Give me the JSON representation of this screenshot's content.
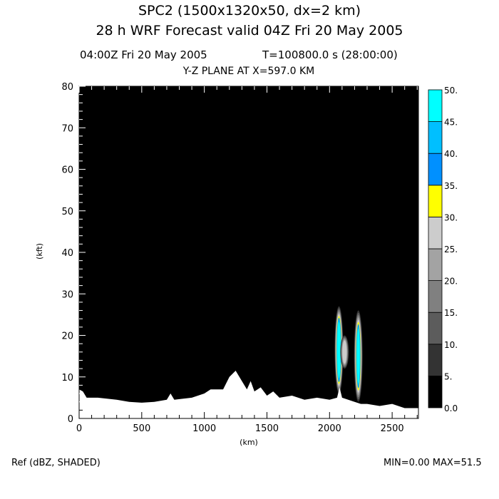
{
  "header": {
    "title": "SPC2 (1500x1320x50, dx=2 km)",
    "subtitle": "28 h WRF Forecast valid 04Z Fri 20 May 2005",
    "valid_time": "04:00Z Fri 20 May 2005",
    "model_time": "T=100800.0 s (28:00:00)",
    "plane": "Y-Z PLANE AT X=597.0 KM"
  },
  "footer": {
    "field": "Ref (dBZ, SHADED)",
    "minmax": "MIN=0.00 MAX=51.5"
  },
  "chart_data": {
    "type": "heatmap",
    "title": "Y-Z PLANE AT X=597.0 KM",
    "xlabel": "(km)",
    "ylabel": "(kft)",
    "xlim": [
      0,
      2710
    ],
    "ylim": [
      0,
      80
    ],
    "xticks": [
      "0",
      "500",
      "1000",
      "1500",
      "2000",
      "2500"
    ],
    "xtick_values": [
      0,
      500,
      1000,
      1500,
      2000,
      2500
    ],
    "yticks": [
      "0",
      "10",
      "20",
      "30",
      "40",
      "50",
      "60",
      "70",
      "80"
    ],
    "ytick_values": [
      0,
      10,
      20,
      30,
      40,
      50,
      60,
      70,
      80
    ],
    "colorbar": {
      "labels": [
        "0.0",
        "5.",
        "10.",
        "15.",
        "20.",
        "25.",
        "30.",
        "35.",
        "40.",
        "45.",
        "50."
      ],
      "colors": [
        "#000000",
        "#333333",
        "#5c5c5c",
        "#808080",
        "#a3a3a3",
        "#cccccc",
        "#ffff00",
        "#0090ff",
        "#00bfff",
        "#00ffff"
      ]
    },
    "terrain_kft": [
      [
        0,
        7
      ],
      [
        30,
        6.5
      ],
      [
        60,
        5
      ],
      [
        150,
        5
      ],
      [
        300,
        4.5
      ],
      [
        400,
        4
      ],
      [
        500,
        3.8
      ],
      [
        600,
        4
      ],
      [
        700,
        4.5
      ],
      [
        730,
        6
      ],
      [
        760,
        4.5
      ],
      [
        900,
        5
      ],
      [
        1000,
        6
      ],
      [
        1050,
        7
      ],
      [
        1150,
        7
      ],
      [
        1200,
        10
      ],
      [
        1250,
        11.5
      ],
      [
        1300,
        9
      ],
      [
        1340,
        7
      ],
      [
        1370,
        9
      ],
      [
        1400,
        6.5
      ],
      [
        1450,
        7.5
      ],
      [
        1500,
        5.5
      ],
      [
        1550,
        6.5
      ],
      [
        1600,
        5
      ],
      [
        1700,
        5.5
      ],
      [
        1800,
        4.5
      ],
      [
        1900,
        5
      ],
      [
        2000,
        4.5
      ],
      [
        2060,
        5
      ],
      [
        2080,
        7.5
      ],
      [
        2100,
        5
      ],
      [
        2200,
        4
      ],
      [
        2250,
        3.5
      ],
      [
        2300,
        3.5
      ],
      [
        2400,
        3
      ],
      [
        2500,
        3.5
      ],
      [
        2600,
        2.5
      ],
      [
        2710,
        2.5
      ]
    ],
    "cells": [
      {
        "x_km": 2075,
        "base_kft": 6,
        "top_kft": 27,
        "max_dbz": 51.5
      },
      {
        "x_km": 2120,
        "base_kft": 12,
        "top_kft": 20,
        "max_dbz": 25
      },
      {
        "x_km": 2230,
        "base_kft": 4,
        "top_kft": 26,
        "max_dbz": 45
      }
    ],
    "background_color": "#000000",
    "terrain_color": "#ffffff"
  }
}
